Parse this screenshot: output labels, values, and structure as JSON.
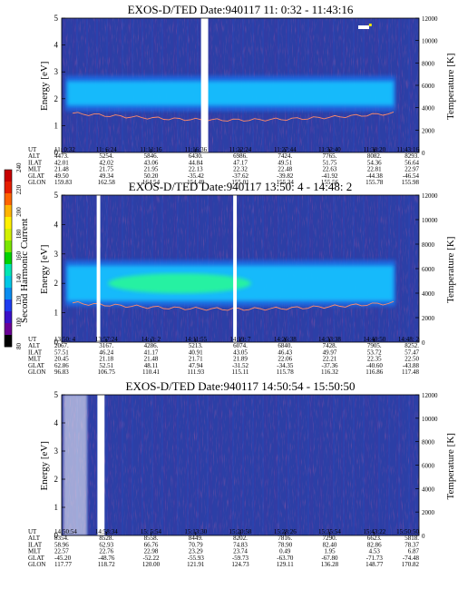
{
  "colorbar": {
    "title": "Second Harmonic Current",
    "ticks": [
      "80",
      "100",
      "120",
      "140",
      "160",
      "180",
      "200",
      "220",
      "240"
    ],
    "range": [
      80,
      240
    ],
    "colors": [
      "#000000",
      "#6a0096",
      "#3a10c8",
      "#1e3cf0",
      "#0a8cf0",
      "#00c8e6",
      "#00e6b4",
      "#00d200",
      "#7ae600",
      "#d2f000",
      "#fff000",
      "#ffb400",
      "#ff6400",
      "#e61e00",
      "#c80000"
    ]
  },
  "panel_style": {
    "background": "#2c3fa6",
    "band_color": "#17c3ff",
    "core_color": "#2aff8c",
    "trace_color": "#ff8c6a"
  },
  "chart_data": [
    {
      "type": "heatmap",
      "title": "EXOS-D/TED  Date:940117  11: 0:32 - 11:43:16",
      "ylabel": "Energy [eV]",
      "y2label": "Temperature [K]",
      "ylim": [
        0,
        5
      ],
      "y2lim": [
        0,
        12000
      ],
      "yticks": [
        "0",
        "1",
        "2",
        "3",
        "4",
        "5"
      ],
      "y2ticks": [
        "0",
        "2000",
        "4000",
        "6000",
        "8000",
        "10000",
        "12000"
      ],
      "band": {
        "x_ut_min": [
          0,
          43
        ],
        "center_ev": 2.2,
        "width_ev": 0.9
      },
      "gaps_fraction": [
        [
          0.39,
          0.41
        ]
      ],
      "table": {
        "labels": [
          "UT",
          "ALT",
          "ILAT",
          "MLT",
          "GLAT",
          "GLON"
        ],
        "columns": [
          [
            "11: 0:32",
            "4473.",
            "42.01",
            "21.48",
            "49.50",
            "159.83"
          ],
          [
            "11: 6:24",
            "5254.",
            "42.02",
            "21.75",
            "49.34",
            "162.58"
          ],
          [
            "11:11:16",
            "5846.",
            "43.06",
            "21.95",
            "50.20",
            "164.54"
          ],
          [
            "11:16:36",
            "6430.",
            "44.84",
            "22.13",
            "-35.42",
            "154.49"
          ],
          [
            "11:22:24",
            "6986.",
            "47.17",
            "22.32",
            "-37.62",
            "155.01"
          ],
          [
            "11:27:44",
            "7424.",
            "49.51",
            "22.48",
            "-39.82",
            "155.34"
          ],
          [
            "11:32:40",
            "7765.",
            "51.75",
            "22.63",
            "-41.92",
            "155.56"
          ],
          [
            "11:38:20",
            "8082.",
            "54.36",
            "22.81",
            "-44.38",
            "155.78"
          ],
          [
            "11:43:16",
            "8293.",
            "56.64",
            "22.97",
            "-46.54",
            "155.98"
          ]
        ]
      }
    },
    {
      "type": "heatmap",
      "title": "EXOS-D/TED  Date:940117  13:50: 4 - 14:48: 2",
      "ylabel": "Energy [eV]",
      "y2label": "Temperature [K]",
      "ylim": [
        0,
        5
      ],
      "y2lim": [
        0,
        12000
      ],
      "yticks": [
        "0",
        "1",
        "2",
        "3",
        "4",
        "5"
      ],
      "y2ticks": [
        "0",
        "2000",
        "4000",
        "6000",
        "8000",
        "10000",
        "12000"
      ],
      "band": {
        "x_ut_min": [
          0,
          58
        ],
        "center_ev": 2.0,
        "width_ev": 1.2
      },
      "gaps_fraction": [
        [
          0.098,
          0.108
        ],
        [
          0.48,
          0.49
        ]
      ],
      "table": {
        "labels": [
          "UT",
          "ALT",
          "ILAT",
          "MLT",
          "GLAT",
          "GLON"
        ],
        "columns": [
          [
            "13:50: 4",
            "2067.",
            "57.51",
            "20.45",
            "62.86",
            "96.83"
          ],
          [
            "13:57:24",
            "3167.",
            "46.24",
            "21.18",
            "52.51",
            "106.75"
          ],
          [
            "14: 3: 2",
            "4286.",
            "41.17",
            "21.48",
            "48.11",
            "110.41"
          ],
          [
            "14:11:55",
            "5213.",
            "40.91",
            "21.71",
            "47.94",
            "111.93"
          ],
          [
            "14:19: 7",
            "6074.",
            "43.05",
            "21.89",
            "-31.52",
            "115.11"
          ],
          [
            "14:26:38",
            "6840.",
            "46.43",
            "22.06",
            "-34.35",
            "115.78"
          ],
          [
            "14:33:38",
            "7428.",
            "49.97",
            "22.21",
            "-37.36",
            "116.32"
          ],
          [
            "14:40:50",
            "7905.",
            "53.72",
            "22.35",
            "-40.60",
            "116.86"
          ],
          [
            "14:48: 2",
            "8252.",
            "57.47",
            "22.50",
            "-43.88",
            "117.48"
          ]
        ]
      }
    },
    {
      "type": "heatmap",
      "title": "EXOS-D/TED  Date:940117  14:50:54 - 15:50:50",
      "ylabel": "Energy [eV]",
      "y2label": "Temperature [K]",
      "ylim": [
        0,
        5
      ],
      "y2lim": [
        0,
        12000
      ],
      "yticks": [
        "0",
        "1",
        "2",
        "3",
        "4",
        "5"
      ],
      "y2ticks": [
        "0",
        "2000",
        "4000",
        "6000",
        "8000",
        "10000",
        "12000"
      ],
      "band": null,
      "gaps_fraction": [
        [
          0.1,
          0.12
        ]
      ],
      "table": {
        "labels": [
          "UT",
          "ALT",
          "ILAT",
          "MLT",
          "GLAT",
          "GLON"
        ],
        "columns": [
          [
            "14:50:54",
            "8354.",
            "58.96",
            "22.57",
            "-45.20",
            "117.77"
          ],
          [
            "14:58:34",
            "8528.",
            "62.93",
            "22.76",
            "-48.76",
            "118.72"
          ],
          [
            "15: 5:54",
            "8558.",
            "66.76",
            "22.98",
            "-52.22",
            "120.00"
          ],
          [
            "15:13:30",
            "8449.",
            "70.79",
            "23.29",
            "-55.93",
            "121.91"
          ],
          [
            "15:20:58",
            "8202.",
            "74.83",
            "23.74",
            "-59.73",
            "124.73"
          ],
          [
            "15:28:26",
            "7816.",
            "78.90",
            "0.49",
            "-63.70",
            "129.11"
          ],
          [
            "15:35:54",
            "7290.",
            "82.40",
            "1.95",
            "-67.80",
            "136.28"
          ],
          [
            "15:43:22",
            "6623.",
            "82.86",
            "4.53",
            "-71.73",
            "148.77"
          ],
          [
            "15:50:50",
            "5818.",
            "78.37",
            "6.87",
            "-74.48",
            "170.82"
          ]
        ]
      }
    }
  ]
}
